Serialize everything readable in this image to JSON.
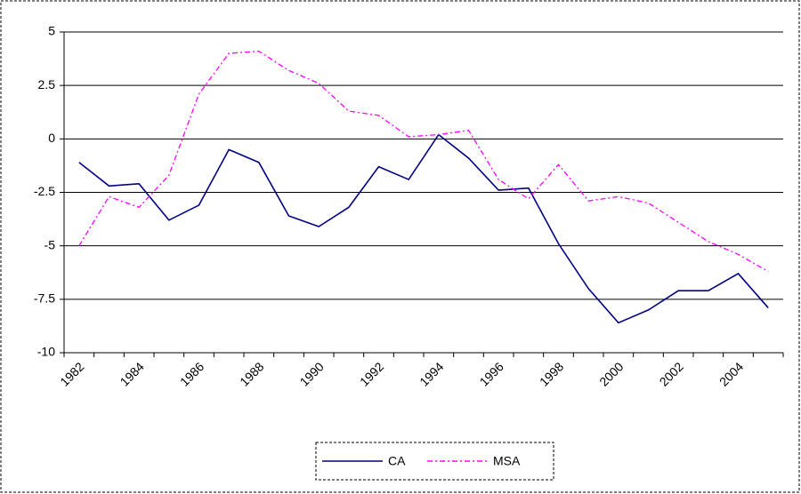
{
  "chart_data": {
    "type": "line",
    "categories": [
      "1982",
      null,
      "1984",
      null,
      "1986",
      null,
      "1988",
      null,
      "1990",
      null,
      "1992",
      null,
      "1994",
      null,
      "1996",
      null,
      "1998",
      null,
      "2000",
      null,
      "2002",
      null,
      "2004",
      null
    ],
    "series": [
      {
        "name": "CA",
        "color": "#000080",
        "line_style": "solid",
        "values": [
          -1.1,
          -2.2,
          -2.1,
          -3.8,
          -3.1,
          -0.5,
          -1.1,
          -3.6,
          -4.1,
          -3.2,
          -1.3,
          -1.9,
          0.2,
          -0.9,
          -2.4,
          -2.3,
          -4.9,
          -7.0,
          -8.6,
          -8.0,
          -7.1,
          -7.1,
          -6.3,
          -7.9
        ]
      },
      {
        "name": "MSA",
        "color": "#ff00ff",
        "line_style": "dashdot",
        "values": [
          -5.0,
          -2.7,
          -3.2,
          -1.7,
          2.1,
          4.0,
          4.1,
          3.2,
          2.6,
          1.3,
          1.1,
          0.1,
          0.2,
          0.4,
          -1.9,
          -2.8,
          -1.2,
          -2.9,
          -2.7,
          -3.0,
          -3.9,
          -4.8,
          -5.4,
          -6.2
        ]
      }
    ],
    "ylim": [
      -10,
      5
    ],
    "yticks": [
      5,
      2.5,
      0,
      -2.5,
      -5,
      -7.5,
      -10
    ],
    "grid": true
  }
}
